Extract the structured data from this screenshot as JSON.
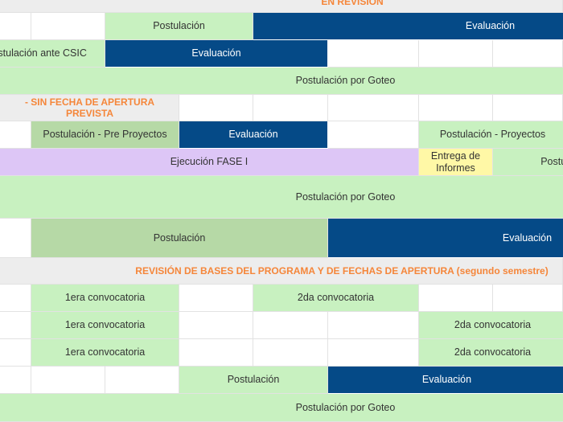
{
  "headers": [
    "EN REVISIÓN",
    "- SIN FECHA DE APERTURA PREVISTA",
    "REVISIÓN DE BASES DEL PROGRAMA Y DE FECHAS DE APERTURA (segundo semestre)"
  ],
  "rows": [
    [
      "Postulación",
      "Evaluación"
    ],
    [
      "Postulación ante CSIC",
      "Evaluación"
    ],
    [
      "Postulación por Goteo"
    ],
    [
      "Postulación - Pre Proyectos",
      "Evaluación",
      "Postulación - Proyectos"
    ],
    [
      "Ejecución FASE I",
      "Entrega de Informes",
      "Postulación"
    ],
    [
      "Postulación por Goteo"
    ],
    [
      "Postulación",
      "Evaluación"
    ],
    [
      "1era convocatoria",
      "2da convocatoria"
    ],
    [
      "1era convocatoria",
      "2da convocatoria"
    ],
    [
      "1era convocatoria",
      "2da convocatoria"
    ],
    [
      "Postulación",
      "Evaluación"
    ],
    [
      "Postulación por Goteo"
    ]
  ]
}
